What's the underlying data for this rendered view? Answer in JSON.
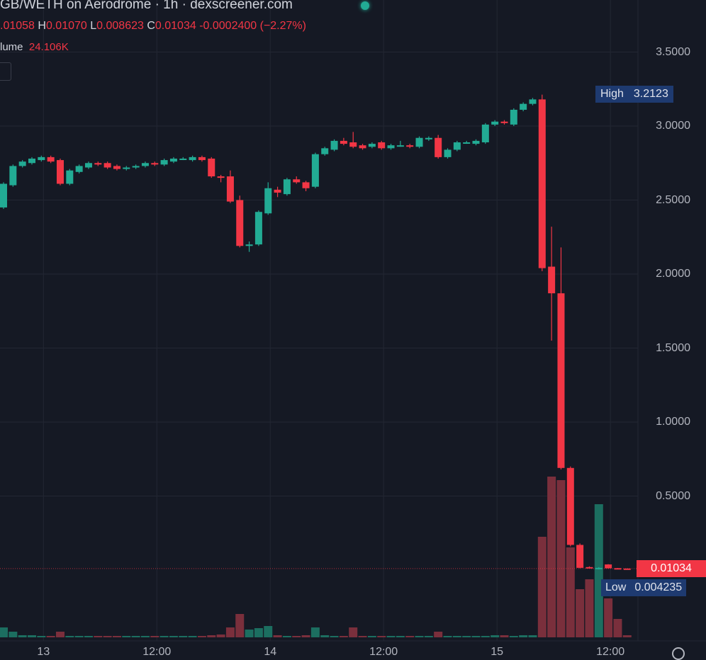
{
  "header": {
    "title": "GB/WETH on Aerodrome · 1h · dexscreener.com",
    "status_dot_color": "#22ab94",
    "ohlc": {
      "open_value": ".01058",
      "high_key": "H",
      "high_value": "0.01070",
      "low_key": "L",
      "low_value": "0.008623",
      "close_key": "C",
      "close_value": "0.01034",
      "change": "-0.0002400 (−2.27%)"
    },
    "volume_label": "lume",
    "volume_value": "24.106K"
  },
  "price_tags": {
    "high_label": "High",
    "high_value": "3.2123",
    "last_value": "0.01034",
    "low_label": "Low",
    "low_value": "0.004235"
  },
  "chart_data": {
    "type": "candlestick",
    "interval": "1h",
    "up_color": "#22ab94",
    "down_color": "#f23645",
    "ylim": [
      0,
      3.6
    ],
    "y_ticks": [
      "3.5000",
      "3.0000",
      "2.5000",
      "2.0000",
      "1.5000",
      "1.0000",
      "0.5000"
    ],
    "y_tick_values": [
      3.5,
      3.0,
      2.5,
      2.0,
      1.5,
      1.0,
      0.5
    ],
    "x_ticks": [
      {
        "label": "13",
        "candle": 4
      },
      {
        "label": "12:00",
        "candle": 16
      },
      {
        "label": "14",
        "candle": 28
      },
      {
        "label": "12:00",
        "candle": 40
      },
      {
        "label": "15",
        "candle": 52
      },
      {
        "label": "12:00",
        "candle": 64
      }
    ],
    "grid": true,
    "last_price": 0.01034,
    "candles_ohlc": [
      [
        2.45,
        2.62,
        2.44,
        2.61
      ],
      [
        2.6,
        2.74,
        2.59,
        2.73
      ],
      [
        2.73,
        2.77,
        2.72,
        2.76
      ],
      [
        2.75,
        2.79,
        2.74,
        2.78
      ],
      [
        2.77,
        2.8,
        2.76,
        2.79
      ],
      [
        2.79,
        2.8,
        2.75,
        2.76
      ],
      [
        2.77,
        2.78,
        2.6,
        2.61
      ],
      [
        2.61,
        2.71,
        2.6,
        2.7
      ],
      [
        2.69,
        2.74,
        2.68,
        2.73
      ],
      [
        2.72,
        2.76,
        2.71,
        2.75
      ],
      [
        2.75,
        2.76,
        2.73,
        2.74
      ],
      [
        2.75,
        2.76,
        2.71,
        2.72
      ],
      [
        2.73,
        2.74,
        2.7,
        2.71
      ],
      [
        2.71,
        2.73,
        2.7,
        2.72
      ],
      [
        2.72,
        2.74,
        2.71,
        2.73
      ],
      [
        2.73,
        2.76,
        2.72,
        2.75
      ],
      [
        2.75,
        2.76,
        2.73,
        2.74
      ],
      [
        2.74,
        2.78,
        2.73,
        2.77
      ],
      [
        2.76,
        2.79,
        2.75,
        2.78
      ],
      [
        2.78,
        2.79,
        2.77,
        2.78
      ],
      [
        2.77,
        2.8,
        2.76,
        2.79
      ],
      [
        2.79,
        2.8,
        2.76,
        2.77
      ],
      [
        2.78,
        2.79,
        2.65,
        2.66
      ],
      [
        2.66,
        2.67,
        2.62,
        2.65
      ],
      [
        2.66,
        2.7,
        2.48,
        2.49
      ],
      [
        2.5,
        2.53,
        2.18,
        2.19
      ],
      [
        2.19,
        2.22,
        2.15,
        2.2
      ],
      [
        2.2,
        2.43,
        2.19,
        2.42
      ],
      [
        2.41,
        2.62,
        2.4,
        2.58
      ],
      [
        2.57,
        2.59,
        2.52,
        2.55
      ],
      [
        2.54,
        2.65,
        2.53,
        2.64
      ],
      [
        2.64,
        2.66,
        2.61,
        2.62
      ],
      [
        2.62,
        2.63,
        2.56,
        2.58
      ],
      [
        2.59,
        2.82,
        2.58,
        2.81
      ],
      [
        2.81,
        2.86,
        2.8,
        2.85
      ],
      [
        2.84,
        2.91,
        2.83,
        2.9
      ],
      [
        2.9,
        2.92,
        2.87,
        2.88
      ],
      [
        2.89,
        2.96,
        2.85,
        2.86
      ],
      [
        2.87,
        2.88,
        2.84,
        2.85
      ],
      [
        2.86,
        2.89,
        2.85,
        2.88
      ],
      [
        2.89,
        2.9,
        2.84,
        2.85
      ],
      [
        2.85,
        2.88,
        2.84,
        2.87
      ],
      [
        2.87,
        2.9,
        2.86,
        2.87
      ],
      [
        2.87,
        2.88,
        2.85,
        2.86
      ],
      [
        2.86,
        2.93,
        2.85,
        2.92
      ],
      [
        2.91,
        2.93,
        2.9,
        2.92
      ],
      [
        2.92,
        2.94,
        2.78,
        2.79
      ],
      [
        2.79,
        2.85,
        2.78,
        2.84
      ],
      [
        2.84,
        2.9,
        2.83,
        2.89
      ],
      [
        2.89,
        2.9,
        2.88,
        2.89
      ],
      [
        2.88,
        2.91,
        2.87,
        2.9
      ],
      [
        2.89,
        3.02,
        2.88,
        3.01
      ],
      [
        3.01,
        3.04,
        3.0,
        3.03
      ],
      [
        3.03,
        3.04,
        3.01,
        3.02
      ],
      [
        3.01,
        3.12,
        3.0,
        3.11
      ],
      [
        3.11,
        3.16,
        3.1,
        3.15
      ],
      [
        3.15,
        3.19,
        3.14,
        3.18
      ],
      [
        3.18,
        3.2123,
        2.02,
        2.04
      ],
      [
        2.05,
        2.32,
        1.55,
        1.87
      ],
      [
        1.87,
        2.18,
        0.68,
        0.69
      ],
      [
        0.69,
        0.7,
        0.16,
        0.17
      ],
      [
        0.17,
        0.18,
        0.012,
        0.015
      ],
      [
        0.02,
        0.025,
        0.01,
        0.012
      ],
      [
        0.011,
        0.02,
        0.004235,
        0.015
      ],
      [
        0.038,
        0.04,
        0.01,
        0.012
      ],
      [
        0.013,
        0.014,
        0.009,
        0.011
      ],
      [
        0.01058,
        0.0107,
        0.008623,
        0.01034
      ]
    ],
    "volume": [
      14,
      8,
      3,
      3,
      2,
      2,
      8,
      2,
      2,
      2,
      2,
      2,
      2,
      2,
      2,
      2,
      2,
      2,
      2,
      2,
      2,
      2,
      3,
      4,
      14,
      33,
      11,
      13,
      16,
      3,
      2,
      2,
      3,
      14,
      3,
      2,
      2,
      14,
      2,
      2,
      2,
      2,
      2,
      2,
      2,
      2,
      8,
      2,
      2,
      2,
      2,
      2,
      3,
      3,
      2,
      3,
      3,
      142,
      227,
      222,
      127,
      68,
      82,
      188,
      55,
      26,
      3
    ]
  }
}
